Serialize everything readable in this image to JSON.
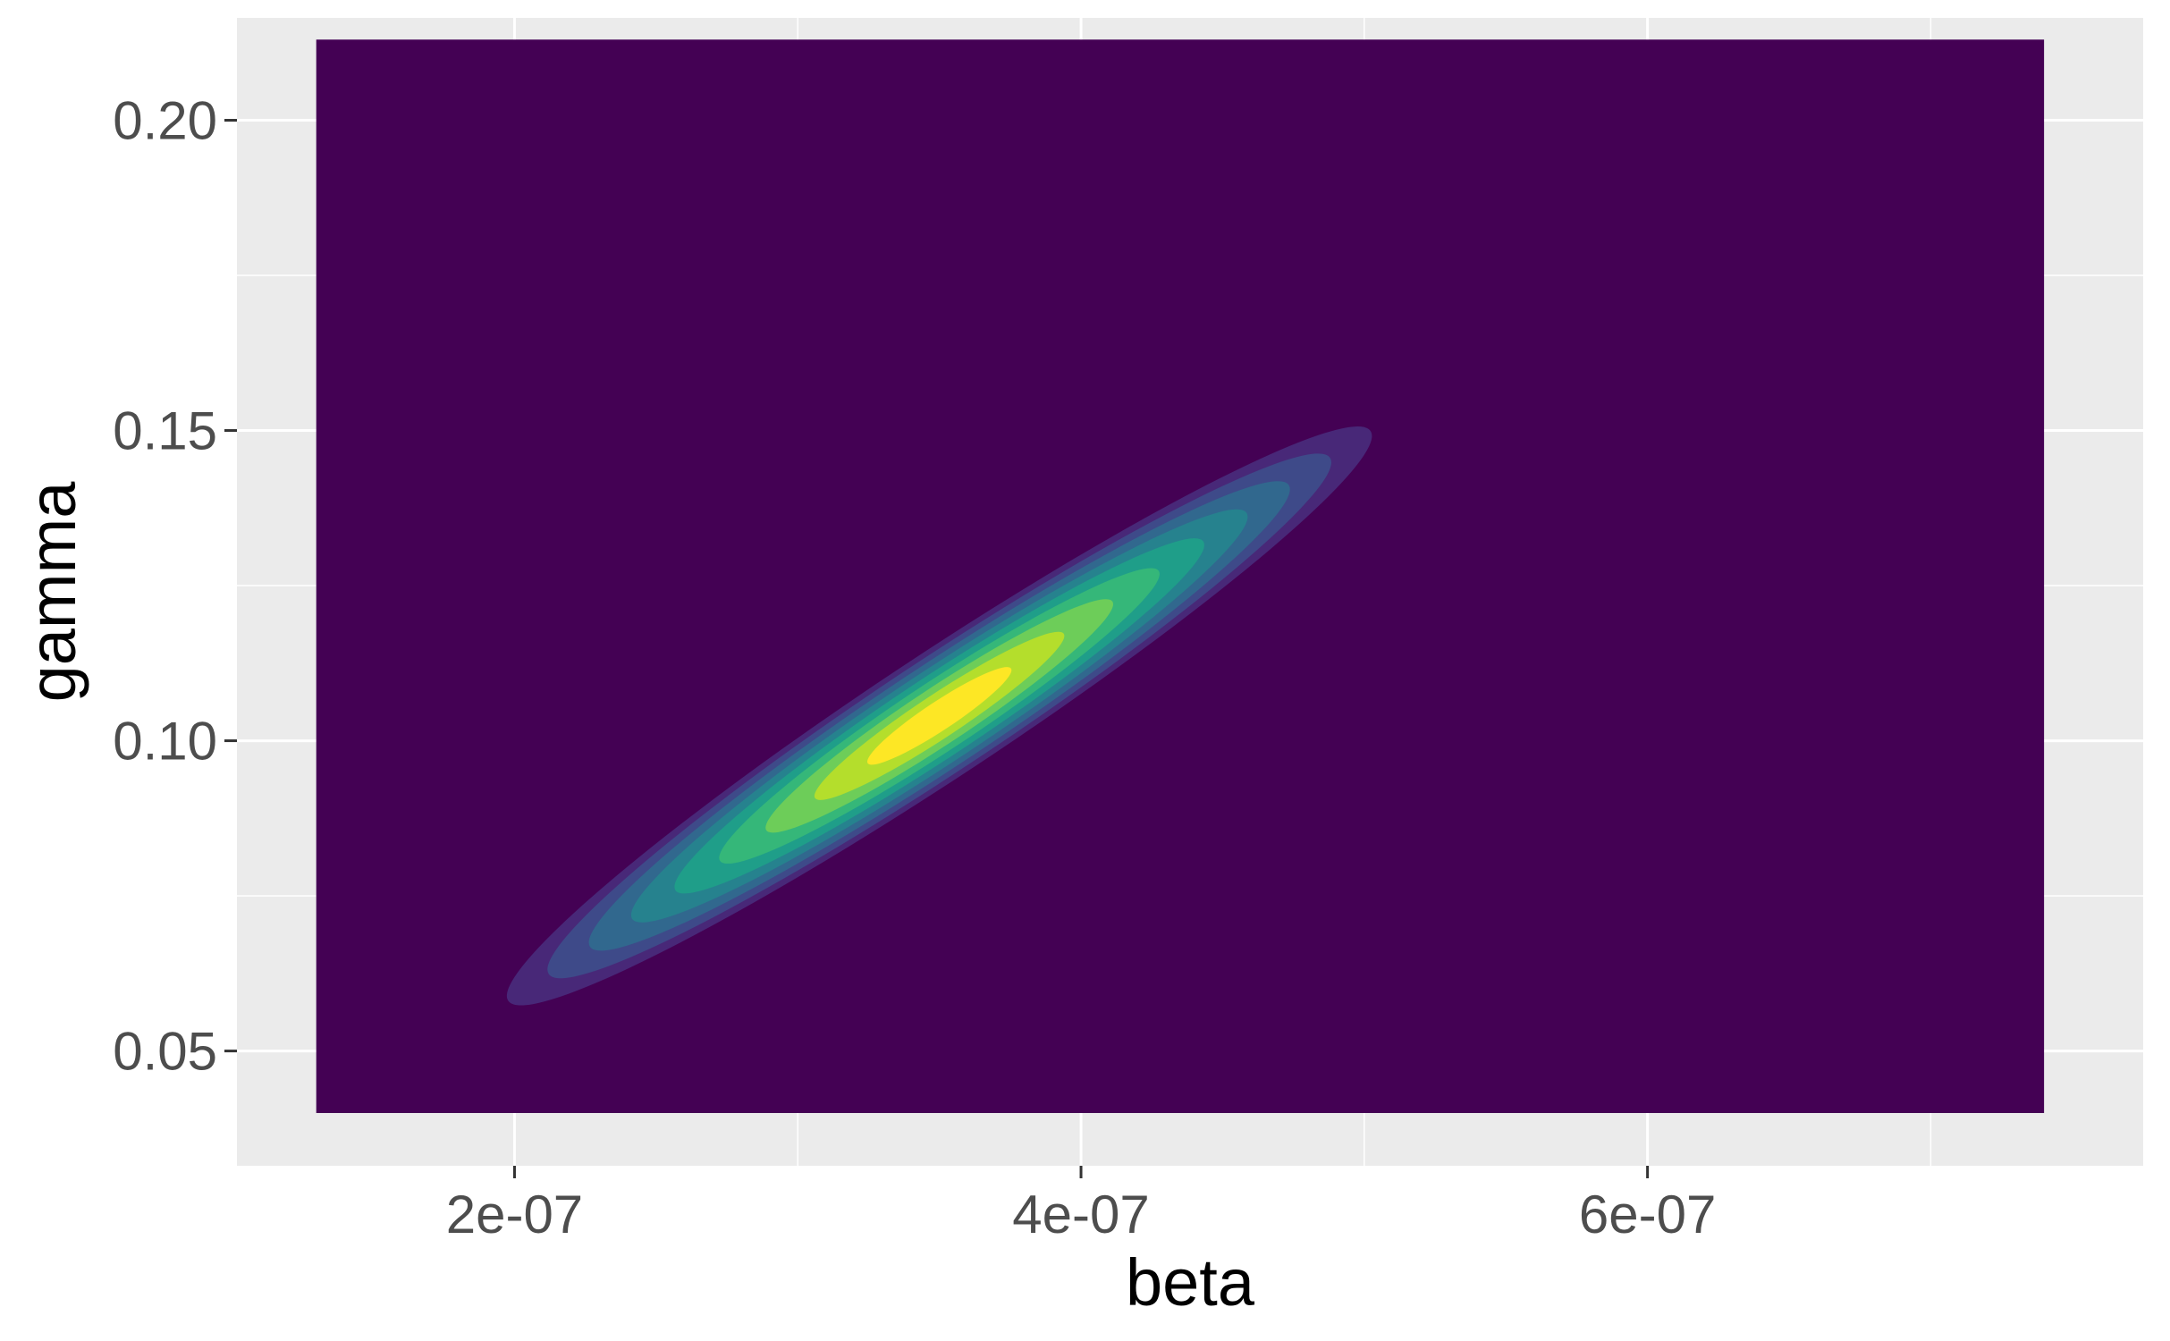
{
  "chart_data": {
    "type": "density-2d-filled",
    "xlabel": "beta",
    "ylabel": "gamma",
    "xlim": [
      1.02e-07,
      7.75e-07
    ],
    "ylim": [
      0.0315,
      0.2165
    ],
    "x_major_ticks": [
      2e-07,
      4e-07,
      6e-07
    ],
    "x_tick_labels": [
      "2e-07",
      "4e-07",
      "6e-07"
    ],
    "x_minor_ticks": [
      3e-07,
      5e-07,
      7e-07
    ],
    "y_major_ticks": [
      0.05,
      0.1,
      0.15,
      0.2
    ],
    "y_tick_labels": [
      "0.05",
      "0.10",
      "0.15",
      "0.20"
    ],
    "y_minor_ticks": [
      0.075,
      0.125,
      0.175
    ],
    "density_extent": {
      "x": [
        1.3e-07,
        7.4e-07
      ],
      "y": [
        0.04,
        0.213
      ]
    },
    "density_peak": {
      "beta": 3.5e-07,
      "gamma": 0.104
    },
    "level_colors": [
      "#440154",
      "#482878",
      "#3E4A89",
      "#31688E",
      "#26828E",
      "#1F9E89",
      "#35B779",
      "#6DCD59",
      "#B4DE2C",
      "#FDE725"
    ],
    "grid": true,
    "legend": "none",
    "background": "#EBEBEB",
    "grid_color": "#FFFFFF"
  }
}
